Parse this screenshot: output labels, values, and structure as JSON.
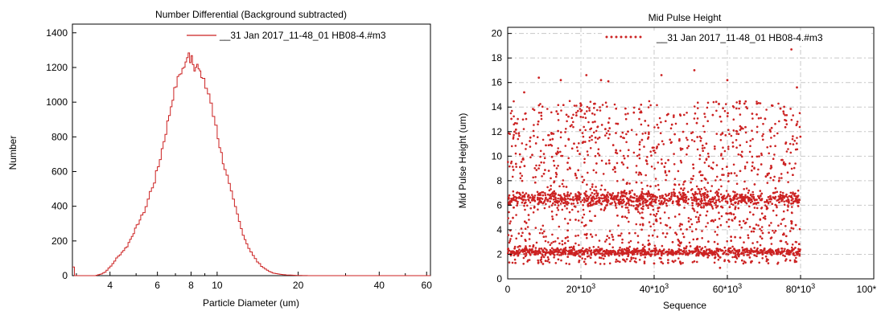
{
  "colors": {
    "series": "#cc2222",
    "grid": "#c8c8c8",
    "axis": "#000000"
  },
  "chart_data": [
    {
      "type": "line",
      "step": true,
      "title": "Number Differential  (Background subtracted)",
      "xlabel": "Particle Diameter (um)",
      "ylabel": "Number",
      "xscale": "log",
      "xlim": [
        2.9,
        62
      ],
      "ylim": [
        0,
        1450
      ],
      "x_ticks": [
        4,
        6,
        8,
        10,
        20,
        40,
        60
      ],
      "x_tick_labels": [
        "4",
        "6",
        "8",
        "10",
        "20",
        "40",
        "60"
      ],
      "y_ticks": [
        0,
        200,
        400,
        600,
        800,
        1000,
        1200,
        1400
      ],
      "y_tick_labels": [
        "0",
        "200",
        "400",
        "600",
        "800",
        "1000",
        "1200",
        "1400"
      ],
      "grid": false,
      "legend_position": "top-right",
      "series": [
        {
          "name": "__31 Jan 2017_11-48_01  HB08-4.#m3",
          "points": [
            [
              2.9,
              50
            ],
            [
              2.95,
              0
            ],
            [
              3.5,
              0
            ],
            [
              3.6,
              5
            ],
            [
              3.7,
              10
            ],
            [
              3.8,
              20
            ],
            [
              4.0,
              55
            ],
            [
              4.2,
              100
            ],
            [
              4.4,
              135
            ],
            [
              4.6,
              170
            ],
            [
              4.8,
              230
            ],
            [
              5.0,
              285
            ],
            [
              5.2,
              340
            ],
            [
              5.4,
              400
            ],
            [
              5.6,
              480
            ],
            [
              5.8,
              545
            ],
            [
              6.0,
              630
            ],
            [
              6.2,
              730
            ],
            [
              6.4,
              830
            ],
            [
              6.6,
              930
            ],
            [
              6.8,
              1030
            ],
            [
              7.0,
              1100
            ],
            [
              7.2,
              1160
            ],
            [
              7.4,
              1190
            ],
            [
              7.6,
              1220
            ],
            [
              7.7,
              1250
            ],
            [
              7.8,
              1300
            ],
            [
              7.9,
              1240
            ],
            [
              8.0,
              1270
            ],
            [
              8.2,
              1200
            ],
            [
              8.4,
              1210
            ],
            [
              8.6,
              1160
            ],
            [
              8.8,
              1140
            ],
            [
              9.0,
              1080
            ],
            [
              9.2,
              1050
            ],
            [
              9.4,
              980
            ],
            [
              9.6,
              920
            ],
            [
              9.8,
              870
            ],
            [
              10.0,
              800
            ],
            [
              10.3,
              700
            ],
            [
              10.6,
              620
            ],
            [
              11.0,
              520
            ],
            [
              11.4,
              430
            ],
            [
              11.8,
              350
            ],
            [
              12.2,
              270
            ],
            [
              12.6,
              210
            ],
            [
              13.0,
              160
            ],
            [
              13.5,
              115
            ],
            [
              14.0,
              80
            ],
            [
              14.5,
              55
            ],
            [
              15.0,
              38
            ],
            [
              15.5,
              25
            ],
            [
              16.0,
              15
            ],
            [
              17.0,
              8
            ],
            [
              18.0,
              4
            ],
            [
              20.0,
              1
            ],
            [
              22.0,
              0
            ],
            [
              62.0,
              0
            ]
          ]
        }
      ]
    },
    {
      "type": "scatter",
      "title": "Mid Pulse Height",
      "xlabel": "Sequence",
      "ylabel": "Mid Pulse Height (um)",
      "xlim": [
        0,
        100000
      ],
      "ylim": [
        0,
        20.5
      ],
      "x_ticks": [
        0,
        20000,
        40000,
        60000,
        80000,
        100000
      ],
      "x_tick_labels": [
        "0",
        "20*10",
        "40*10",
        "60*10",
        "80*10",
        "100*10"
      ],
      "x_tick_exponent": "3",
      "y_ticks": [
        0,
        2,
        4,
        6,
        8,
        10,
        12,
        14,
        16,
        18,
        20
      ],
      "y_tick_labels": [
        "0",
        "2",
        "4",
        "6",
        "8",
        "10",
        "12",
        "14",
        "16",
        "18",
        "20"
      ],
      "grid": true,
      "legend_position": "top-right",
      "sample_count": 80000,
      "dense_bands": [
        2.2,
        6.5
      ],
      "spread_range": [
        1.2,
        14.5
      ],
      "outliers": [
        [
          4500,
          15.2
        ],
        [
          8500,
          16.4
        ],
        [
          14500,
          16.2
        ],
        [
          21500,
          16.6
        ],
        [
          25500,
          16.2
        ],
        [
          27500,
          16.1
        ],
        [
          42000,
          16.6
        ],
        [
          51000,
          17.0
        ],
        [
          60000,
          16.2
        ],
        [
          75000,
          19.6
        ],
        [
          77500,
          18.7
        ],
        [
          79000,
          15.6
        ],
        [
          58000,
          0.9
        ]
      ],
      "series": [
        {
          "name": "__31 Jan 2017_11-48_01  HB08-4.#m3"
        }
      ]
    }
  ]
}
